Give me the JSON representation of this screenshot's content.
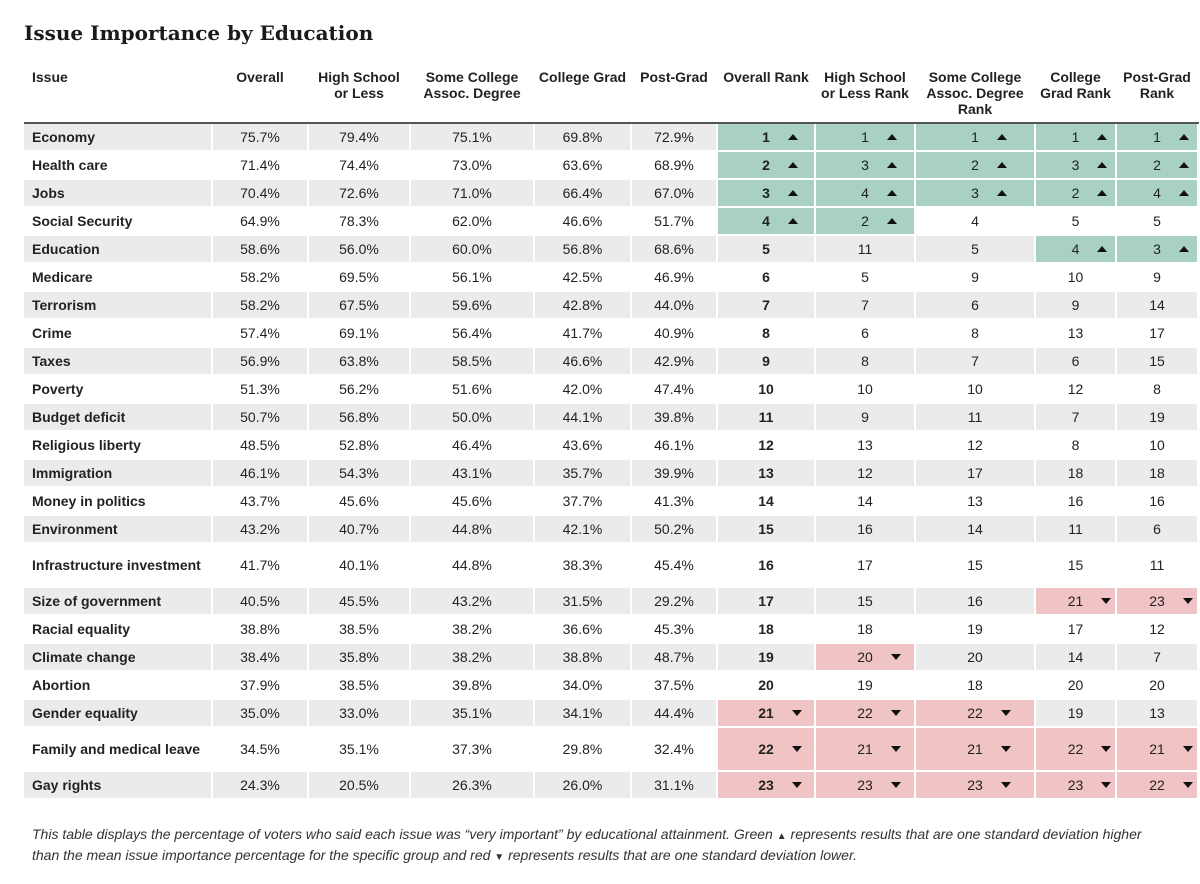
{
  "title": "Issue Importance by Education",
  "headers": [
    "Issue",
    "Overall",
    "High School or Less",
    "Some College Assoc. Degree",
    "College Grad",
    "Post-Grad",
    "Overall Rank",
    "High School or Less Rank",
    "Some College Assoc. Degree Rank",
    "College Grad Rank",
    "Post-Grad Rank"
  ],
  "colors": {
    "up": "#a8d1c1",
    "down": "#f0c3c5",
    "stripe": "#ebebeb"
  },
  "chart_data": {
    "type": "table",
    "title": "Issue Importance by Education",
    "columns": [
      "Issue",
      "Overall",
      "High School or Less",
      "Some College Assoc. Degree",
      "College Grad",
      "Post-Grad",
      "Overall Rank",
      "High School or Less Rank",
      "Some College Assoc. Degree Rank",
      "College Grad Rank",
      "Post-Grad Rank"
    ],
    "rows": [
      {
        "issue": "Economy",
        "pct": [
          "75.7%",
          "79.4%",
          "75.1%",
          "69.8%",
          "72.9%"
        ],
        "rank": [
          1,
          1,
          1,
          1,
          1
        ],
        "flag": [
          "up",
          "up",
          "up",
          "up",
          "up"
        ]
      },
      {
        "issue": "Health care",
        "pct": [
          "71.4%",
          "74.4%",
          "73.0%",
          "63.6%",
          "68.9%"
        ],
        "rank": [
          2,
          3,
          2,
          3,
          2
        ],
        "flag": [
          "up",
          "up",
          "up",
          "up",
          "up"
        ]
      },
      {
        "issue": "Jobs",
        "pct": [
          "70.4%",
          "72.6%",
          "71.0%",
          "66.4%",
          "67.0%"
        ],
        "rank": [
          3,
          4,
          3,
          2,
          4
        ],
        "flag": [
          "up",
          "up",
          "up",
          "up",
          "up"
        ]
      },
      {
        "issue": "Social Security",
        "pct": [
          "64.9%",
          "78.3%",
          "62.0%",
          "46.6%",
          "51.7%"
        ],
        "rank": [
          4,
          2,
          4,
          5,
          5
        ],
        "flag": [
          "up",
          "up",
          "",
          "",
          ""
        ]
      },
      {
        "issue": "Education",
        "pct": [
          "58.6%",
          "56.0%",
          "60.0%",
          "56.8%",
          "68.6%"
        ],
        "rank": [
          5,
          11,
          5,
          4,
          3
        ],
        "flag": [
          "",
          "",
          "",
          "up",
          "up"
        ]
      },
      {
        "issue": "Medicare",
        "pct": [
          "58.2%",
          "69.5%",
          "56.1%",
          "42.5%",
          "46.9%"
        ],
        "rank": [
          6,
          5,
          9,
          10,
          9
        ],
        "flag": [
          "",
          "",
          "",
          "",
          ""
        ]
      },
      {
        "issue": "Terrorism",
        "pct": [
          "58.2%",
          "67.5%",
          "59.6%",
          "42.8%",
          "44.0%"
        ],
        "rank": [
          7,
          7,
          6,
          9,
          14
        ],
        "flag": [
          "",
          "",
          "",
          "",
          ""
        ]
      },
      {
        "issue": "Crime",
        "pct": [
          "57.4%",
          "69.1%",
          "56.4%",
          "41.7%",
          "40.9%"
        ],
        "rank": [
          8,
          6,
          8,
          13,
          17
        ],
        "flag": [
          "",
          "",
          "",
          "",
          ""
        ]
      },
      {
        "issue": "Taxes",
        "pct": [
          "56.9%",
          "63.8%",
          "58.5%",
          "46.6%",
          "42.9%"
        ],
        "rank": [
          9,
          8,
          7,
          6,
          15
        ],
        "flag": [
          "",
          "",
          "",
          "",
          ""
        ]
      },
      {
        "issue": "Poverty",
        "pct": [
          "51.3%",
          "56.2%",
          "51.6%",
          "42.0%",
          "47.4%"
        ],
        "rank": [
          10,
          10,
          10,
          12,
          8
        ],
        "flag": [
          "",
          "",
          "",
          "",
          ""
        ]
      },
      {
        "issue": "Budget deficit",
        "pct": [
          "50.7%",
          "56.8%",
          "50.0%",
          "44.1%",
          "39.8%"
        ],
        "rank": [
          11,
          9,
          11,
          7,
          19
        ],
        "flag": [
          "",
          "",
          "",
          "",
          ""
        ]
      },
      {
        "issue": "Religious liberty",
        "pct": [
          "48.5%",
          "52.8%",
          "46.4%",
          "43.6%",
          "46.1%"
        ],
        "rank": [
          12,
          13,
          12,
          8,
          10
        ],
        "flag": [
          "",
          "",
          "",
          "",
          ""
        ]
      },
      {
        "issue": "Immigration",
        "pct": [
          "46.1%",
          "54.3%",
          "43.1%",
          "35.7%",
          "39.9%"
        ],
        "rank": [
          13,
          12,
          17,
          18,
          18
        ],
        "flag": [
          "",
          "",
          "",
          "",
          ""
        ]
      },
      {
        "issue": "Money in politics",
        "pct": [
          "43.7%",
          "45.6%",
          "45.6%",
          "37.7%",
          "41.3%"
        ],
        "rank": [
          14,
          14,
          13,
          16,
          16
        ],
        "flag": [
          "",
          "",
          "",
          "",
          ""
        ]
      },
      {
        "issue": "Environment",
        "pct": [
          "43.2%",
          "40.7%",
          "44.8%",
          "42.1%",
          "50.2%"
        ],
        "rank": [
          15,
          16,
          14,
          11,
          6
        ],
        "flag": [
          "",
          "",
          "",
          "",
          ""
        ]
      },
      {
        "issue": "Infrastructure investment",
        "pct": [
          "41.7%",
          "40.1%",
          "44.8%",
          "38.3%",
          "45.4%"
        ],
        "rank": [
          16,
          17,
          15,
          15,
          11
        ],
        "flag": [
          "",
          "",
          "",
          "",
          ""
        ],
        "tall": true
      },
      {
        "issue": "Size of government",
        "pct": [
          "40.5%",
          "45.5%",
          "43.2%",
          "31.5%",
          "29.2%"
        ],
        "rank": [
          17,
          15,
          16,
          21,
          23
        ],
        "flag": [
          "",
          "",
          "",
          "down",
          "down"
        ]
      },
      {
        "issue": "Racial equality",
        "pct": [
          "38.8%",
          "38.5%",
          "38.2%",
          "36.6%",
          "45.3%"
        ],
        "rank": [
          18,
          18,
          19,
          17,
          12
        ],
        "flag": [
          "",
          "",
          "",
          "",
          ""
        ]
      },
      {
        "issue": "Climate change",
        "pct": [
          "38.4%",
          "35.8%",
          "38.2%",
          "38.8%",
          "48.7%"
        ],
        "rank": [
          19,
          20,
          20,
          14,
          7
        ],
        "flag": [
          "",
          "down",
          "",
          "",
          ""
        ]
      },
      {
        "issue": "Abortion",
        "pct": [
          "37.9%",
          "38.5%",
          "39.8%",
          "34.0%",
          "37.5%"
        ],
        "rank": [
          20,
          19,
          18,
          20,
          20
        ],
        "flag": [
          "",
          "",
          "",
          "",
          ""
        ]
      },
      {
        "issue": "Gender equality",
        "pct": [
          "35.0%",
          "33.0%",
          "35.1%",
          "34.1%",
          "44.4%"
        ],
        "rank": [
          21,
          22,
          22,
          19,
          13
        ],
        "flag": [
          "down",
          "down",
          "down",
          "",
          ""
        ]
      },
      {
        "issue": "Family and medical leave",
        "pct": [
          "34.5%",
          "35.1%",
          "37.3%",
          "29.8%",
          "32.4%"
        ],
        "rank": [
          22,
          21,
          21,
          22,
          21
        ],
        "flag": [
          "down",
          "down",
          "down",
          "down",
          "down"
        ],
        "tall": true
      },
      {
        "issue": "Gay rights",
        "pct": [
          "24.3%",
          "20.5%",
          "26.3%",
          "26.0%",
          "31.1%"
        ],
        "rank": [
          23,
          23,
          23,
          23,
          22
        ],
        "flag": [
          "down",
          "down",
          "down",
          "down",
          "down"
        ]
      }
    ]
  },
  "footnote": {
    "part1": "This table displays the percentage of voters who said each issue was “very important” by educational attainment. Green",
    "part2": "represents results that are one standard deviation higher than the mean issue importance percentage for the specific group and red",
    "part3": "represents results that are one standard deviation lower."
  }
}
